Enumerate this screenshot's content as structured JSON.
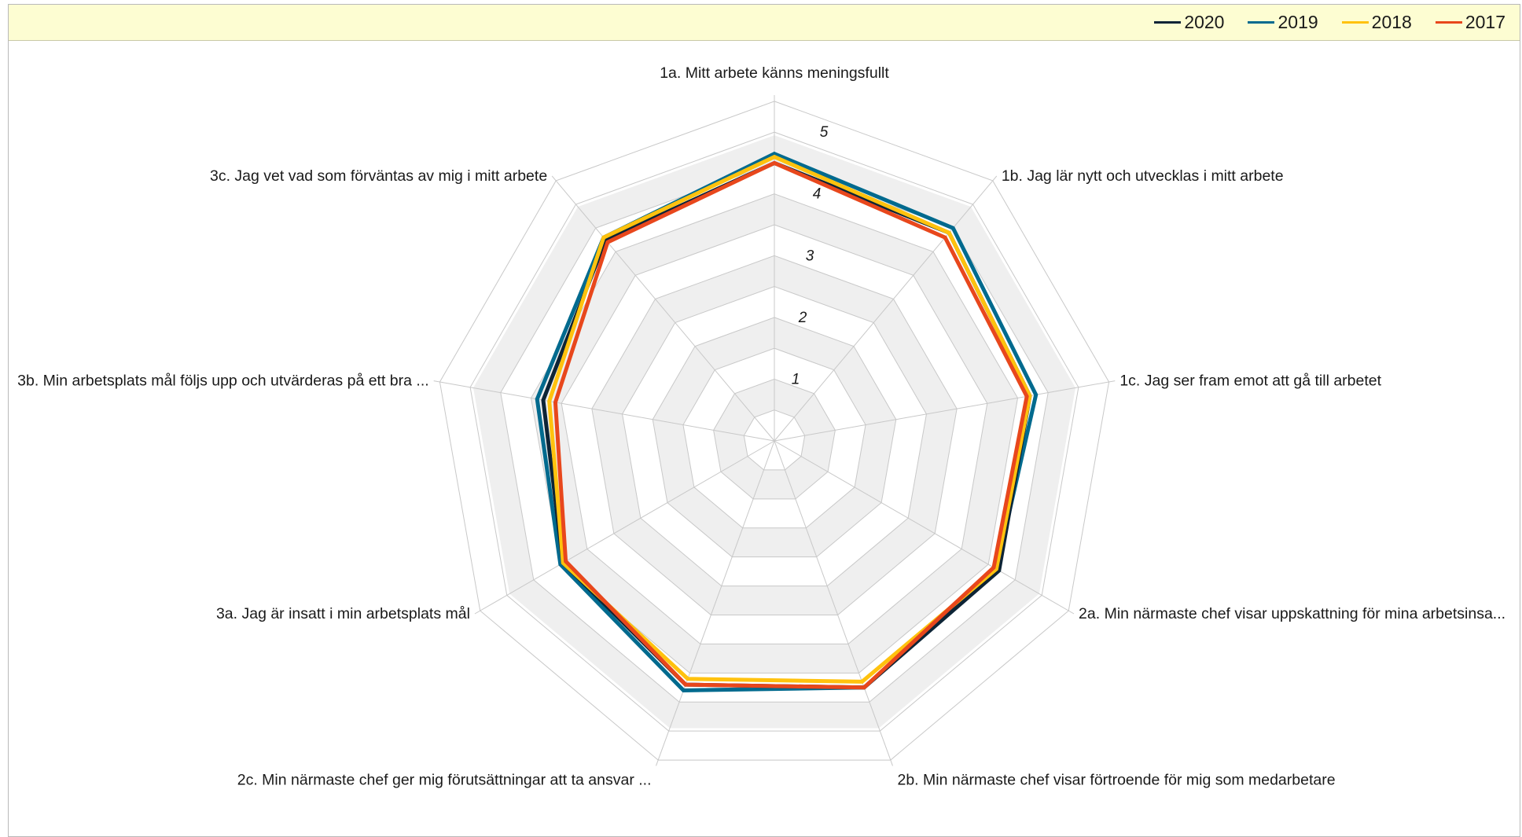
{
  "chart_data": {
    "type": "radar",
    "categories": [
      "1a. Mitt arbete känns meningsfullt",
      "1b. Jag lär nytt och utvecklas i mitt arbete",
      "1c. Jag ser fram emot att gå till arbetet",
      "2a. Min närmaste chef visar uppskattning för mina arbetsinsa...",
      "2b. Min närmaste chef visar förtroende för mig som medarbetare",
      "2c. Min närmaste chef ger mig förutsättningar att ta ansvar ...",
      "3a. Jag är insatt i min arbetsplats mål",
      "3b. Min arbetsplats mål följs upp och utvärderas på ett bra ...",
      "3c. Jag vet vad som förväntas av mig i mitt arbete"
    ],
    "axis": {
      "min": 0,
      "max": 5.6,
      "ticks": [
        1,
        2,
        3,
        4,
        5
      ],
      "tick_labels": [
        "1",
        "2",
        "3",
        "4",
        "5"
      ]
    },
    "series": [
      {
        "name": "2017",
        "color": "#e8471c",
        "values": [
          4.5,
          4.3,
          4.15,
          4.1,
          4.25,
          4.2,
          3.9,
          3.6,
          4.2
        ]
      },
      {
        "name": "2018",
        "color": "#ffc20e",
        "values": [
          4.6,
          4.4,
          4.2,
          4.15,
          4.15,
          4.1,
          3.95,
          3.7,
          4.3
        ]
      },
      {
        "name": "2019",
        "color": "#006a8e",
        "values": [
          4.65,
          4.5,
          4.3,
          4.15,
          4.25,
          4.3,
          4.0,
          3.9,
          4.3
        ]
      },
      {
        "name": "2020",
        "color": "#0d2436",
        "values": [
          4.5,
          4.4,
          4.2,
          4.2,
          4.25,
          4.2,
          3.95,
          3.8,
          4.25
        ]
      }
    ],
    "legend_order": [
      "2020",
      "2019",
      "2018",
      "2017"
    ],
    "legend": "top-right",
    "grid": true
  }
}
